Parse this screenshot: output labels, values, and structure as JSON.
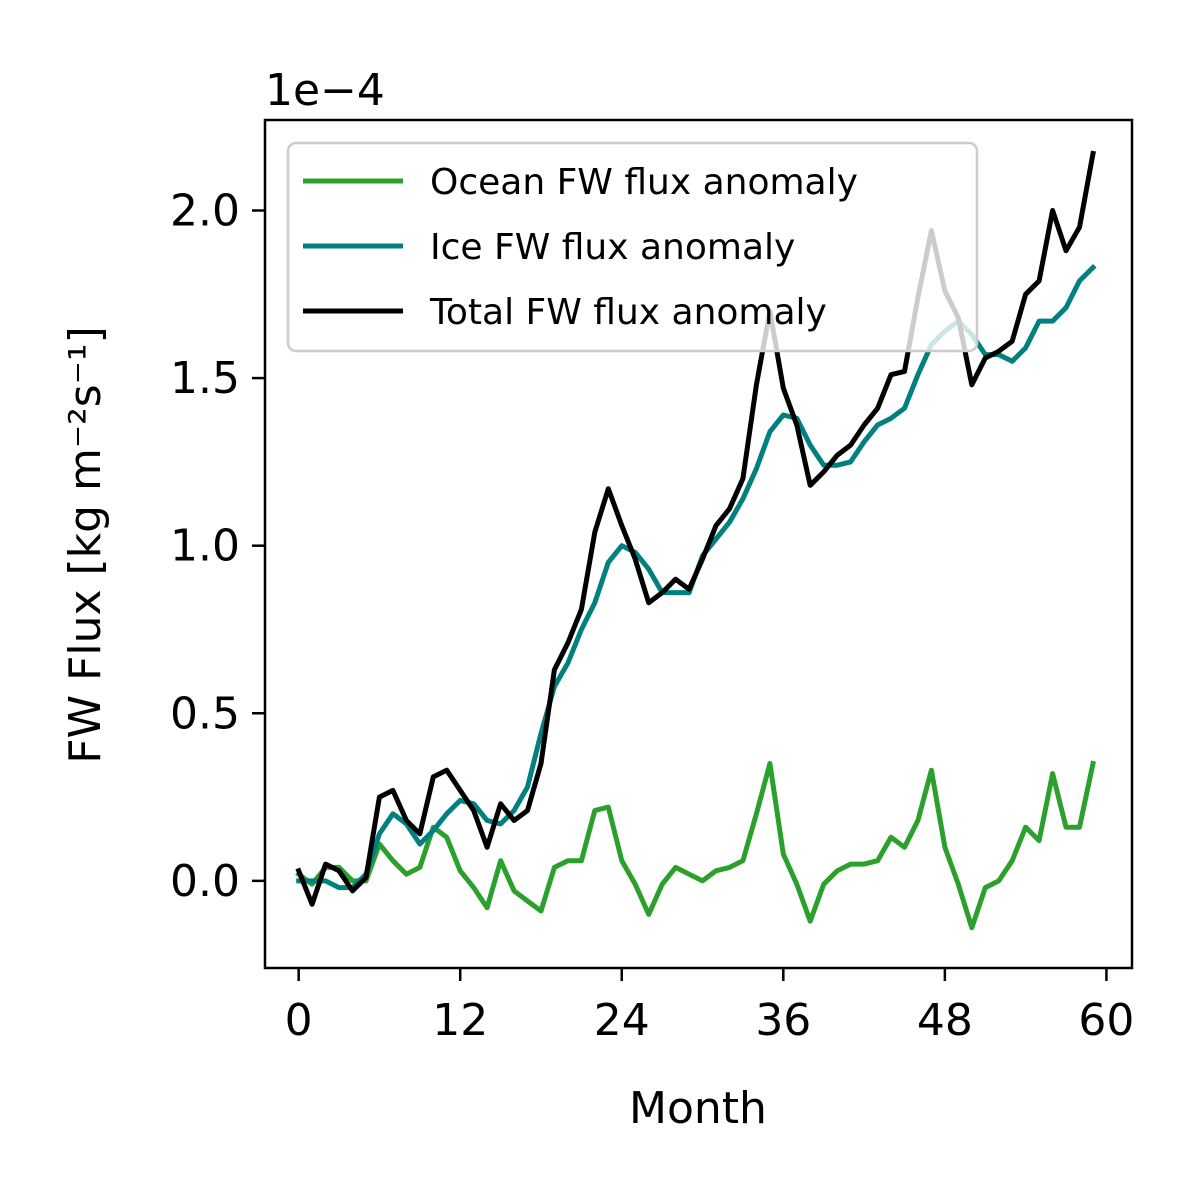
{
  "chart_data": {
    "type": "line",
    "title": "",
    "xlabel": "Month",
    "ylabel": "FW Flux [kg m⁻²s⁻¹]",
    "y_offset_label": "1e−4",
    "xlim": [
      -2.5,
      61.9
    ],
    "ylim": [
      -0.26,
      2.27
    ],
    "x_ticks": [
      0,
      12,
      24,
      36,
      48,
      60
    ],
    "x_tick_labels": [
      "0",
      "12",
      "24",
      "36",
      "48",
      "60"
    ],
    "y_ticks": [
      0.0,
      0.5,
      1.0,
      1.5,
      2.0
    ],
    "y_tick_labels": [
      "0.0",
      "0.5",
      "1.0",
      "1.5",
      "2.0"
    ],
    "grid": false,
    "legend_position": "upper-left",
    "x": [
      0,
      1,
      2,
      3,
      4,
      5,
      6,
      7,
      8,
      9,
      10,
      11,
      12,
      13,
      14,
      15,
      16,
      17,
      18,
      19,
      20,
      21,
      22,
      23,
      24,
      25,
      26,
      27,
      28,
      29,
      30,
      31,
      32,
      33,
      34,
      35,
      36,
      37,
      38,
      39,
      40,
      41,
      42,
      43,
      44,
      45,
      46,
      47,
      48,
      49,
      50,
      51,
      52,
      53,
      54,
      55,
      56,
      57,
      58,
      59
    ],
    "series": [
      {
        "name": "Ocean FW flux anomaly",
        "color": "#2ca02c",
        "values": [
          0.02,
          -0.01,
          0.04,
          0.04,
          0.0,
          0.0,
          0.11,
          0.06,
          0.02,
          0.04,
          0.16,
          0.13,
          0.03,
          -0.02,
          -0.08,
          0.06,
          -0.03,
          -0.06,
          -0.09,
          0.04,
          0.06,
          0.06,
          0.21,
          0.22,
          0.06,
          -0.01,
          -0.1,
          -0.01,
          0.04,
          0.02,
          0.0,
          0.03,
          0.04,
          0.06,
          0.2,
          0.35,
          0.08,
          -0.01,
          -0.12,
          -0.01,
          0.03,
          0.05,
          0.05,
          0.06,
          0.13,
          0.1,
          0.18,
          0.33,
          0.1,
          -0.01,
          -0.14,
          -0.02,
          0.0,
          0.06,
          0.16,
          0.12,
          0.32,
          0.16,
          0.16,
          0.35
        ]
      },
      {
        "name": "Ice FW flux anomaly",
        "color": "#008080",
        "values": [
          0.0,
          0.0,
          0.0,
          -0.02,
          -0.02,
          0.02,
          0.14,
          0.2,
          0.17,
          0.11,
          0.15,
          0.2,
          0.24,
          0.23,
          0.18,
          0.17,
          0.21,
          0.28,
          0.44,
          0.58,
          0.65,
          0.75,
          0.83,
          0.95,
          1.0,
          0.98,
          0.93,
          0.86,
          0.86,
          0.86,
          0.97,
          1.02,
          1.07,
          1.14,
          1.23,
          1.34,
          1.39,
          1.38,
          1.3,
          1.24,
          1.24,
          1.25,
          1.31,
          1.36,
          1.38,
          1.41,
          1.51,
          1.6,
          1.64,
          1.67,
          1.63,
          1.57,
          1.57,
          1.55,
          1.59,
          1.67,
          1.67,
          1.71,
          1.79,
          1.83
        ]
      },
      {
        "name": "Total FW flux anomaly",
        "color": "#000000",
        "values": [
          0.03,
          -0.07,
          0.05,
          0.03,
          -0.03,
          0.01,
          0.25,
          0.27,
          0.18,
          0.14,
          0.31,
          0.33,
          0.27,
          0.21,
          0.1,
          0.23,
          0.18,
          0.21,
          0.35,
          0.63,
          0.71,
          0.81,
          1.04,
          1.17,
          1.06,
          0.96,
          0.83,
          0.86,
          0.9,
          0.87,
          0.96,
          1.06,
          1.11,
          1.2,
          1.48,
          1.7,
          1.47,
          1.36,
          1.18,
          1.22,
          1.27,
          1.3,
          1.36,
          1.41,
          1.51,
          1.52,
          1.74,
          1.94,
          1.76,
          1.68,
          1.48,
          1.56,
          1.58,
          1.61,
          1.75,
          1.79,
          2.0,
          1.88,
          1.95,
          2.17
        ]
      }
    ]
  }
}
